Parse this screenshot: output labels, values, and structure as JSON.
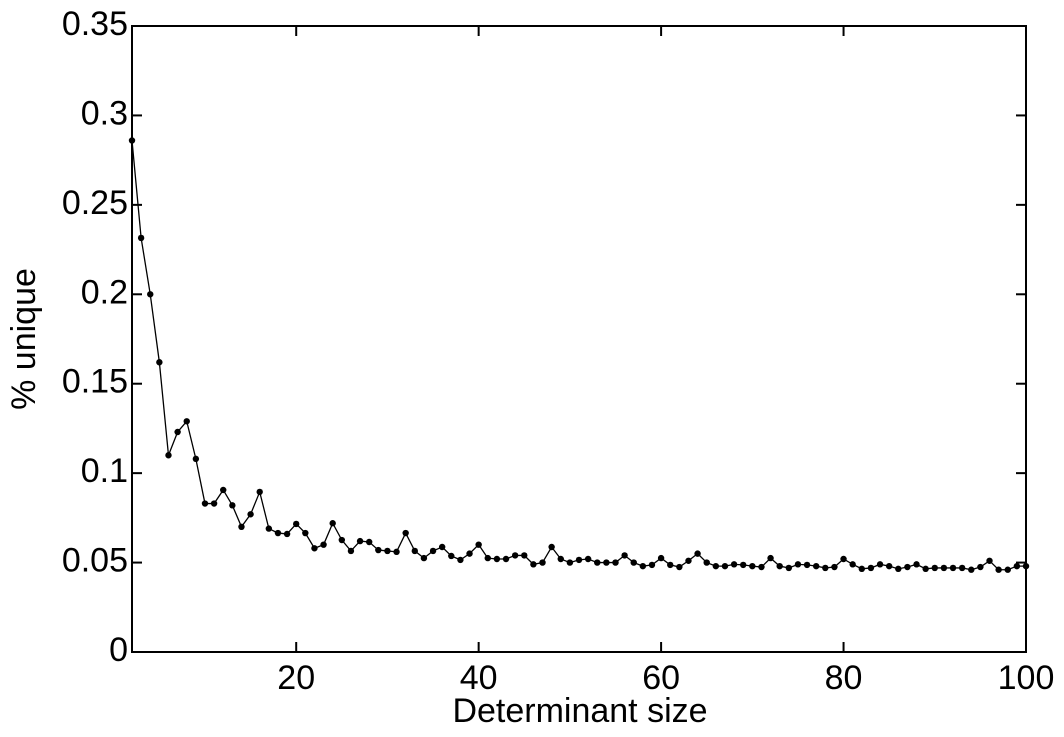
{
  "chart_data": {
    "type": "line",
    "xlabel": "Determinant size",
    "ylabel": "% unique",
    "x": [
      2,
      3,
      4,
      5,
      6,
      7,
      8,
      9,
      10,
      11,
      12,
      13,
      14,
      15,
      16,
      17,
      18,
      19,
      20,
      21,
      22,
      23,
      24,
      25,
      26,
      27,
      28,
      29,
      30,
      31,
      32,
      33,
      34,
      35,
      36,
      37,
      38,
      39,
      40,
      41,
      42,
      43,
      44,
      45,
      46,
      47,
      48,
      49,
      50,
      51,
      52,
      53,
      54,
      55,
      56,
      57,
      58,
      59,
      60,
      61,
      62,
      63,
      64,
      65,
      66,
      67,
      68,
      69,
      70,
      71,
      72,
      73,
      74,
      75,
      76,
      77,
      78,
      79,
      80,
      81,
      82,
      83,
      84,
      85,
      86,
      87,
      88,
      89,
      90,
      91,
      92,
      93,
      94,
      95,
      96,
      97,
      98,
      99,
      100
    ],
    "series": [
      {
        "name": "% unique",
        "color": "#000000",
        "values": [
          0.286,
          0.2315,
          0.2,
          0.162,
          0.11,
          0.123,
          0.129,
          0.108,
          0.083,
          0.083,
          0.0906,
          0.082,
          0.07,
          0.077,
          0.0895,
          0.069,
          0.0665,
          0.066,
          0.0716,
          0.0665,
          0.058,
          0.06,
          0.072,
          0.0626,
          0.0565,
          0.062,
          0.0615,
          0.057,
          0.0565,
          0.056,
          0.0665,
          0.0565,
          0.0525,
          0.0565,
          0.0587,
          0.0537,
          0.0515,
          0.055,
          0.06,
          0.0525,
          0.052,
          0.052,
          0.054,
          0.054,
          0.049,
          0.05,
          0.0587,
          0.052,
          0.05,
          0.0515,
          0.052,
          0.05,
          0.05,
          0.05,
          0.054,
          0.05,
          0.048,
          0.0487,
          0.0525,
          0.0487,
          0.0475,
          0.051,
          0.055,
          0.05,
          0.048,
          0.048,
          0.049,
          0.0487,
          0.048,
          0.0475,
          0.0525,
          0.048,
          0.047,
          0.049,
          0.0487,
          0.048,
          0.047,
          0.0475,
          0.052,
          0.049,
          0.0465,
          0.047,
          0.049,
          0.048,
          0.0465,
          0.0475,
          0.049,
          0.0465,
          0.047,
          0.047,
          0.047,
          0.047,
          0.046,
          0.0475,
          0.051,
          0.046,
          0.046,
          0.048,
          0.048
        ]
      }
    ],
    "xlim": [
      2,
      100
    ],
    "xticks": [
      20,
      40,
      60,
      80,
      100
    ],
    "ylim": [
      0,
      0.35
    ],
    "yticks": [
      0,
      0.05,
      0.1,
      0.15,
      0.2,
      0.25,
      0.3,
      0.35
    ],
    "grid": false
  }
}
